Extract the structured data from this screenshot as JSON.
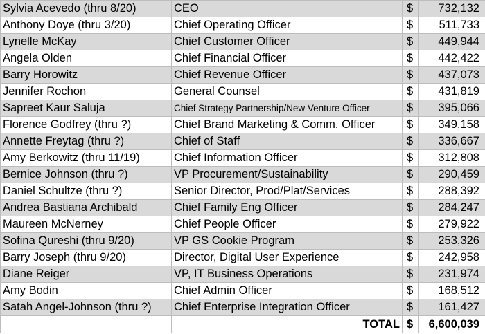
{
  "rows": [
    {
      "name": "Sylvia Acevedo (thru 8/20)",
      "title": "CEO",
      "currency": "$",
      "amount": "732,132"
    },
    {
      "name": "Anthony Doye (thru 3/20)",
      "title": "Chief Operating Officer",
      "currency": "$",
      "amount": "511,733"
    },
    {
      "name": "Lynelle McKay",
      "title": "Chief Customer Officer",
      "currency": "$",
      "amount": "449,944"
    },
    {
      "name": "Angela Olden",
      "title": "Chief Financial Officer",
      "currency": "$",
      "amount": "442,422"
    },
    {
      "name": "Barry Horowitz",
      "title": "Chief Revenue Officer",
      "currency": "$",
      "amount": "437,073"
    },
    {
      "name": "Jennifer Rochon",
      "title": "General Counsel",
      "currency": "$",
      "amount": "431,819"
    },
    {
      "name": "Sapreet Kaur Saluja",
      "title": "Chief Strategy Partnership/New Venture Officer",
      "currency": "$",
      "amount": "395,066"
    },
    {
      "name": "Florence Godfrey (thru ?)",
      "title": "Chief Brand Marketing & Comm. Officer",
      "currency": "$",
      "amount": "349,158"
    },
    {
      "name": "Annette Freytag (thru ?)",
      "title": "Chief of Staff",
      "currency": "$",
      "amount": "336,667"
    },
    {
      "name": "Amy Berkowitz (thru 11/19)",
      "title": "Chief Information Officer",
      "currency": "$",
      "amount": "312,808"
    },
    {
      "name": "Bernice Johnson (thru ?)",
      "title": "VP Procurement/Sustainability",
      "currency": "$",
      "amount": "290,459"
    },
    {
      "name": "Daniel Schultze (thru ?)",
      "title": "Senior Director, Prod/Plat/Services",
      "currency": "$",
      "amount": "288,392"
    },
    {
      "name": "Andrea Bastiana Archibald",
      "title": "Chief Family Eng Officer",
      "currency": "$",
      "amount": "284,247"
    },
    {
      "name": "Maureen McNerney",
      "title": "Chief People Officer",
      "currency": "$",
      "amount": "279,922"
    },
    {
      "name": "Sofina Qureshi (thru 9/20)",
      "title": "VP GS Cookie Program",
      "currency": "$",
      "amount": "253,326"
    },
    {
      "name": "Barry Joseph (thru 9/20)",
      "title": "Director, Digital User Experience",
      "currency": "$",
      "amount": "242,958"
    },
    {
      "name": "Diane Reiger",
      "title": "VP, IT Business Operations",
      "currency": "$",
      "amount": "231,974"
    },
    {
      "name": "Amy Bodin",
      "title": "Chief Admin Officer",
      "currency": "$",
      "amount": "168,512"
    },
    {
      "name": "Satah Angel-Johnson (thru ?)",
      "title": "Chief Enterprise Integration Officer",
      "currency": "$",
      "amount": "161,427"
    }
  ],
  "total": {
    "label": "TOTAL",
    "currency": "$",
    "amount": "6,600,039"
  },
  "colors": {
    "shaded_row": "#d9d9d9",
    "grid_line": "#bdbdbd"
  }
}
